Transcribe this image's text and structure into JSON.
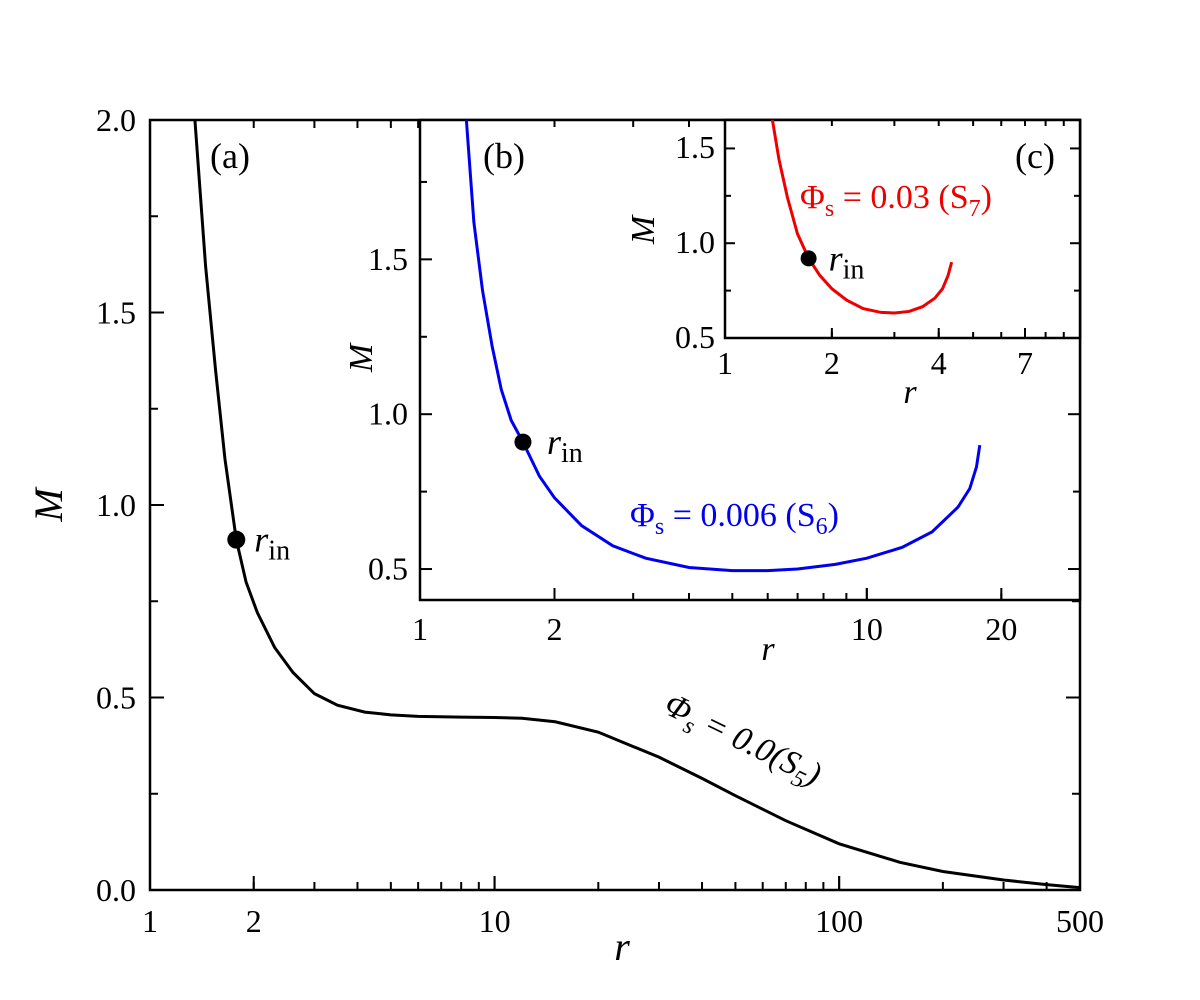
{
  "chart_data": [
    {
      "panel": "a",
      "type": "line",
      "panel_tag": "(a)",
      "xlabel": "r",
      "ylabel": "M",
      "xscale": "log",
      "xlim": [
        1,
        500
      ],
      "ylim": [
        0,
        2.0
      ],
      "x_ticks": [
        "1",
        "2",
        "10",
        "100",
        "500"
      ],
      "y_ticks": [
        "0.0",
        "0.5",
        "1.0",
        "1.5",
        "2.0"
      ],
      "series": [
        {
          "label_phi": "Φ",
          "label_sub": "s",
          "label_eq": " = 0.0(S",
          "label_num": "5",
          "label_close": ")",
          "color": "#000000",
          "x": [
            1.35,
            1.45,
            1.55,
            1.65,
            1.78,
            1.9,
            2.05,
            2.3,
            2.6,
            3.0,
            3.5,
            4.2,
            5.0,
            6.0,
            8.0,
            10.0,
            12.0,
            15.0,
            20.0,
            30.0,
            40.0,
            50.0,
            70.0,
            100.0,
            150.0,
            200.0,
            300.0,
            400.0,
            500.0
          ],
          "y": [
            2.0,
            1.62,
            1.35,
            1.12,
            0.91,
            0.8,
            0.72,
            0.63,
            0.565,
            0.51,
            0.48,
            0.462,
            0.455,
            0.451,
            0.449,
            0.448,
            0.446,
            0.437,
            0.41,
            0.345,
            0.29,
            0.245,
            0.18,
            0.12,
            0.072,
            0.048,
            0.026,
            0.014,
            0.006
          ]
        }
      ],
      "marker": {
        "label_main": "r",
        "label_sub": "in",
        "x": 1.78,
        "y": 0.91
      }
    },
    {
      "panel": "b",
      "type": "line",
      "panel_tag": "(b)",
      "xlabel": "r",
      "ylabel": "M",
      "xscale": "log",
      "xlim": [
        1,
        30
      ],
      "ylim": [
        0.4,
        1.95
      ],
      "x_ticks": [
        "1",
        "2",
        "10",
        "20"
      ],
      "y_ticks": [
        "0.5",
        "1.0",
        "1.5"
      ],
      "series": [
        {
          "label_phi": "Φ",
          "label_sub": "s",
          "label_eq": " = 0.006 (S",
          "label_num": "6",
          "label_close": ")",
          "color": "#0000ee",
          "x": [
            1.27,
            1.32,
            1.38,
            1.45,
            1.52,
            1.6,
            1.7,
            1.85,
            2.0,
            2.3,
            2.7,
            3.2,
            4.0,
            5.0,
            6.0,
            7.0,
            8.5,
            10.0,
            12.0,
            14.0,
            16.0,
            17.0,
            17.6,
            17.9
          ],
          "y": [
            1.95,
            1.62,
            1.4,
            1.22,
            1.08,
            0.98,
            0.91,
            0.8,
            0.73,
            0.64,
            0.575,
            0.535,
            0.505,
            0.495,
            0.495,
            0.5,
            0.515,
            0.535,
            0.57,
            0.62,
            0.7,
            0.76,
            0.83,
            0.9
          ]
        }
      ],
      "marker": {
        "label_main": "r",
        "label_sub": "in",
        "x": 1.7,
        "y": 0.91
      }
    },
    {
      "panel": "c",
      "type": "line",
      "panel_tag": "(c)",
      "xlabel": "r",
      "ylabel": "M",
      "xscale": "log",
      "xlim": [
        1,
        10
      ],
      "ylim": [
        0.5,
        1.65
      ],
      "x_ticks": [
        "1",
        "2",
        "4",
        "7"
      ],
      "y_ticks": [
        "0.5",
        "1.0",
        "1.5"
      ],
      "series": [
        {
          "label_phi": "Φ",
          "label_sub": "s",
          "label_eq": " = 0.03 (S",
          "label_num": "7",
          "label_close": ")",
          "color": "#ee0000",
          "x": [
            1.36,
            1.42,
            1.5,
            1.6,
            1.72,
            1.85,
            2.0,
            2.2,
            2.45,
            2.75,
            3.0,
            3.3,
            3.6,
            3.9,
            4.1,
            4.25,
            4.35
          ],
          "y": [
            1.65,
            1.44,
            1.24,
            1.05,
            0.92,
            0.83,
            0.76,
            0.7,
            0.655,
            0.635,
            0.632,
            0.64,
            0.665,
            0.71,
            0.76,
            0.83,
            0.9
          ]
        }
      ],
      "marker": {
        "label_main": "r",
        "label_sub": "in",
        "x": 1.72,
        "y": 0.92
      }
    }
  ]
}
